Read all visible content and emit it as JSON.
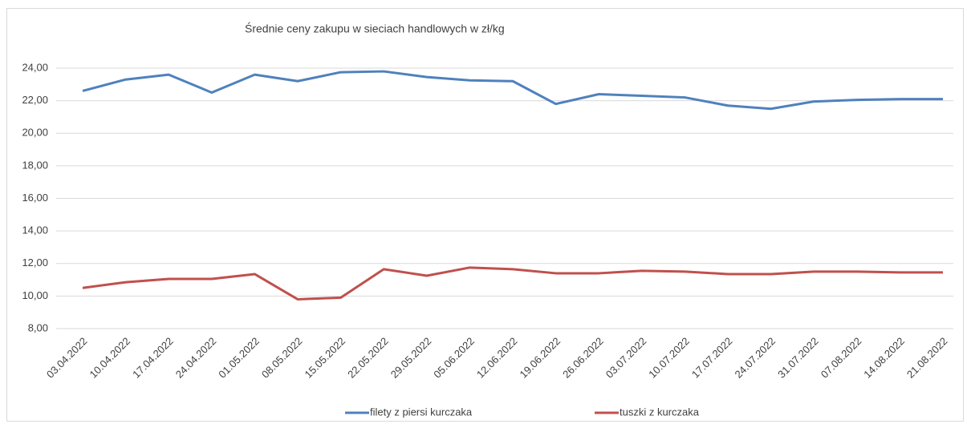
{
  "chart_data": {
    "type": "line",
    "title": "Średnie ceny zakupu w sieciach handlowych w zł/kg",
    "categories": [
      "03.04.2022",
      "10.04.2022",
      "17.04.2022",
      "24.04.2022",
      "01.05.2022",
      "08.05.2022",
      "15.05.2022",
      "22.05.2022",
      "29.05.2022",
      "05.06.2022",
      "12.06.2022",
      "19.06.2022",
      "26.06.2022",
      "03.07.2022",
      "10.07.2022",
      "17.07.2022",
      "24.07.2022",
      "31.07.2022",
      "07.08.2022",
      "14.08.2022",
      "21.08.2022"
    ],
    "series": [
      {
        "name": "filety z piersi kurczaka",
        "color": "#4f81bd",
        "values": [
          22.6,
          23.3,
          23.6,
          22.5,
          23.6,
          23.2,
          23.75,
          23.8,
          23.45,
          23.25,
          23.2,
          21.8,
          22.4,
          22.3,
          22.2,
          21.7,
          21.5,
          21.95,
          22.05,
          22.1,
          22.1
        ]
      },
      {
        "name": "tuszki  z kurczaka",
        "color": "#c0504d",
        "values": [
          10.5,
          10.85,
          11.05,
          11.05,
          11.35,
          9.8,
          9.9,
          11.65,
          11.25,
          11.75,
          11.65,
          11.4,
          11.4,
          11.55,
          11.5,
          11.35,
          11.35,
          11.5,
          11.5,
          11.45,
          11.45
        ]
      }
    ],
    "ylim": [
      8,
      24
    ],
    "yticks": [
      {
        "value": 8,
        "label": "8,00"
      },
      {
        "value": 10,
        "label": "10,00"
      },
      {
        "value": 12,
        "label": "12,00"
      },
      {
        "value": 14,
        "label": "14,00"
      },
      {
        "value": 16,
        "label": "16,00"
      },
      {
        "value": 18,
        "label": "18,00"
      },
      {
        "value": 20,
        "label": "20,00"
      },
      {
        "value": 22,
        "label": "22,00"
      },
      {
        "value": 24,
        "label": "24,00"
      }
    ],
    "grid": true,
    "legend": "bottom"
  }
}
